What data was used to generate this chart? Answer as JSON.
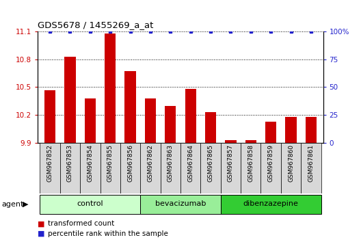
{
  "title": "GDS5678 / 1455269_a_at",
  "samples": [
    "GSM967852",
    "GSM967853",
    "GSM967854",
    "GSM967855",
    "GSM967856",
    "GSM967862",
    "GSM967863",
    "GSM967864",
    "GSM967865",
    "GSM967857",
    "GSM967858",
    "GSM967859",
    "GSM967860",
    "GSM967861"
  ],
  "bar_values": [
    10.47,
    10.83,
    10.38,
    11.08,
    10.67,
    10.38,
    10.3,
    10.48,
    10.23,
    9.93,
    9.93,
    10.13,
    10.18,
    10.18
  ],
  "percentile_values": [
    100,
    100,
    100,
    100,
    100,
    100,
    100,
    100,
    100,
    100,
    100,
    100,
    100,
    100
  ],
  "bar_color": "#cc0000",
  "percentile_color": "#2222cc",
  "ylim_left": [
    9.9,
    11.1
  ],
  "ylim_right": [
    0,
    100
  ],
  "yticks_left": [
    9.9,
    10.2,
    10.5,
    10.8,
    11.1
  ],
  "yticks_right": [
    0,
    25,
    50,
    75,
    100
  ],
  "groups": [
    {
      "label": "control",
      "start": 0,
      "end": 5,
      "color": "#ccffcc"
    },
    {
      "label": "bevacizumab",
      "start": 5,
      "end": 9,
      "color": "#aaffaa"
    },
    {
      "label": "dibenzazepine",
      "start": 9,
      "end": 14,
      "color": "#44dd44"
    }
  ],
  "agent_label": "agent",
  "legend_bar_label": "transformed count",
  "legend_pct_label": "percentile rank within the sample",
  "background_color": "#ffffff",
  "bar_width": 0.55
}
